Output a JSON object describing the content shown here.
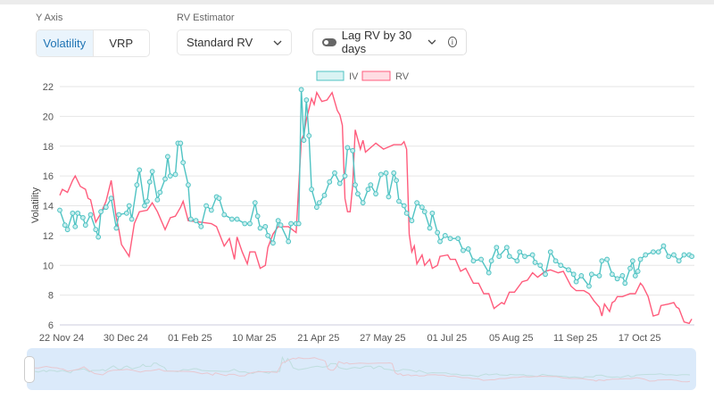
{
  "controls": {
    "y_axis_label": "Y Axis",
    "y_axis_options": [
      "Volatility",
      "VRP"
    ],
    "rv_estimator_label": "RV Estimator",
    "rv_estimator_value": "Standard RV",
    "lag_label": "Lag RV by 30 days",
    "lag_enabled": false
  },
  "colors": {
    "iv": "#4fc3c3",
    "rv": "#ff5c7c"
  },
  "chart_data": {
    "type": "line",
    "ylabel": "Volatility",
    "ylim": [
      6,
      22
    ],
    "yticks": [
      6,
      8,
      10,
      12,
      14,
      16,
      18,
      20,
      22
    ],
    "x_unit": "trading-day index",
    "xlim": [
      0,
      247
    ],
    "xticks": [
      {
        "i": 0,
        "label": "22 Nov 24"
      },
      {
        "i": 25,
        "label": "30 Dec 24"
      },
      {
        "i": 50,
        "label": "01 Feb 25"
      },
      {
        "i": 75,
        "label": "10 Mar 25"
      },
      {
        "i": 100,
        "label": "21 Apr 25"
      },
      {
        "i": 125,
        "label": "27 May 25"
      },
      {
        "i": 150,
        "label": "01 Jul 25"
      },
      {
        "i": 175,
        "label": "05 Aug 25"
      },
      {
        "i": 200,
        "label": "11 Sep 25"
      },
      {
        "i": 225,
        "label": "17 Oct 25"
      }
    ],
    "legend": [
      "IV",
      "RV"
    ],
    "legend_position": "top-center",
    "grid": true,
    "series": [
      {
        "name": "IV",
        "points": [
          [
            0,
            13.7
          ],
          [
            2,
            12.7
          ],
          [
            3,
            12.4
          ],
          [
            5,
            13.5
          ],
          [
            6,
            12.6
          ],
          [
            7,
            13.5
          ],
          [
            9,
            13.2
          ],
          [
            10,
            12.7
          ],
          [
            12,
            13.4
          ],
          [
            14,
            12.4
          ],
          [
            15,
            11.9
          ],
          [
            16,
            13.6
          ],
          [
            18,
            13.9
          ],
          [
            20,
            14.5
          ],
          [
            22,
            12.5
          ],
          [
            23,
            13.4
          ],
          [
            26,
            13.5
          ],
          [
            27,
            14
          ],
          [
            28,
            13.1
          ],
          [
            30,
            15.4
          ],
          [
            31,
            16.4
          ],
          [
            33,
            14
          ],
          [
            34,
            14.3
          ],
          [
            35,
            15.6
          ],
          [
            36,
            16.3
          ],
          [
            38,
            14.4
          ],
          [
            39,
            14.9
          ],
          [
            41,
            15.8
          ],
          [
            42,
            17.3
          ],
          [
            43,
            16
          ],
          [
            45,
            16.1
          ],
          [
            46,
            18.2
          ],
          [
            47,
            18.2
          ],
          [
            48,
            16.9
          ],
          [
            50,
            15.4
          ],
          [
            51,
            13.1
          ],
          [
            53,
            13
          ],
          [
            55,
            12.6
          ],
          [
            57,
            14
          ],
          [
            59,
            13.7
          ],
          [
            61,
            14.6
          ],
          [
            62,
            14.5
          ],
          [
            64,
            13.4
          ],
          [
            67,
            13.1
          ],
          [
            69,
            13.1
          ],
          [
            72,
            12.8
          ],
          [
            74,
            12.8
          ],
          [
            76,
            14.2
          ],
          [
            77,
            13.3
          ],
          [
            78,
            12.5
          ],
          [
            80,
            12.6
          ],
          [
            81,
            12
          ],
          [
            83,
            11.5
          ],
          [
            85,
            13
          ],
          [
            86,
            12.7
          ],
          [
            89,
            11.6
          ],
          [
            90,
            12.8
          ],
          [
            92,
            12.8
          ],
          [
            93,
            12.8
          ],
          [
            94,
            21.8
          ],
          [
            95,
            18.4
          ],
          [
            96,
            21.1
          ],
          [
            97,
            18.7
          ],
          [
            98,
            15.1
          ],
          [
            100,
            13.9
          ],
          [
            101,
            14.2
          ],
          [
            103,
            14.7
          ],
          [
            105,
            15.6
          ],
          [
            107,
            16.2
          ],
          [
            109,
            15.5
          ],
          [
            111,
            16
          ],
          [
            112,
            17.9
          ],
          [
            114,
            17.7
          ],
          [
            115,
            15.4
          ],
          [
            116,
            14.8
          ],
          [
            118,
            14.2
          ],
          [
            120,
            15.1
          ],
          [
            121,
            15.4
          ],
          [
            123,
            14.8
          ],
          [
            125,
            16.1
          ],
          [
            127,
            16.2
          ],
          [
            128,
            14.6
          ],
          [
            130,
            16.2
          ],
          [
            131,
            15.7
          ],
          [
            132,
            14.3
          ],
          [
            134,
            14
          ],
          [
            135,
            13.5
          ],
          [
            137,
            13
          ],
          [
            139,
            14.2
          ],
          [
            141,
            13.9
          ],
          [
            142,
            13.6
          ],
          [
            144,
            12.5
          ],
          [
            145,
            13.5
          ],
          [
            147,
            12.2
          ],
          [
            148,
            11.6
          ],
          [
            150,
            12
          ],
          [
            152,
            11.8
          ],
          [
            155,
            11.8
          ],
          [
            157,
            11
          ],
          [
            159,
            11.1
          ],
          [
            161,
            10.3
          ],
          [
            164,
            10.4
          ],
          [
            167,
            9.5
          ],
          [
            168,
            10.3
          ],
          [
            170,
            11.2
          ],
          [
            171,
            10.6
          ],
          [
            174,
            11.2
          ],
          [
            175,
            10.6
          ],
          [
            178,
            10.3
          ],
          [
            179,
            10.9
          ],
          [
            181,
            10.6
          ],
          [
            184,
            10.7
          ],
          [
            185,
            10.2
          ],
          [
            187,
            10
          ],
          [
            189,
            9.4
          ],
          [
            191,
            10.9
          ],
          [
            193,
            10.3
          ],
          [
            195,
            10
          ],
          [
            198,
            9.7
          ],
          [
            200,
            9.4
          ],
          [
            201,
            8.9
          ],
          [
            203,
            9.3
          ],
          [
            206,
            8.6
          ],
          [
            207,
            9.4
          ],
          [
            210,
            9.3
          ],
          [
            211,
            10.3
          ],
          [
            213,
            10.4
          ],
          [
            215,
            9.4
          ],
          [
            217,
            9.1
          ],
          [
            219,
            9.3
          ],
          [
            220,
            8.8
          ],
          [
            222,
            9.8
          ],
          [
            223,
            10.3
          ],
          [
            224,
            9.3
          ],
          [
            225,
            9.6
          ],
          [
            226,
            10.4
          ],
          [
            228,
            10.7
          ],
          [
            231,
            10.9
          ],
          [
            233,
            10.9
          ],
          [
            235,
            11.3
          ],
          [
            237,
            10.6
          ],
          [
            239,
            10.7
          ],
          [
            241,
            10.3
          ],
          [
            243,
            10.7
          ],
          [
            245,
            10.7
          ],
          [
            246,
            10.6
          ]
        ]
      },
      {
        "name": "RV",
        "points": [
          [
            0,
            14.7
          ],
          [
            1,
            15.1
          ],
          [
            3,
            14.9
          ],
          [
            5,
            15.7
          ],
          [
            6,
            16
          ],
          [
            8,
            15.3
          ],
          [
            10,
            15.1
          ],
          [
            11,
            14.5
          ],
          [
            12,
            14.4
          ],
          [
            14,
            12.9
          ],
          [
            16,
            13.5
          ],
          [
            18,
            14.3
          ],
          [
            20,
            15.7
          ],
          [
            22,
            13.2
          ],
          [
            23,
            12.4
          ],
          [
            24,
            11.4
          ],
          [
            27,
            10.6
          ],
          [
            29,
            12.8
          ],
          [
            31,
            13.6
          ],
          [
            34,
            13.7
          ],
          [
            36,
            14.2
          ],
          [
            38,
            13.6
          ],
          [
            41,
            12.4
          ],
          [
            43,
            13.2
          ],
          [
            45,
            13.3
          ],
          [
            47,
            13.9
          ],
          [
            48,
            14.3
          ],
          [
            50,
            13
          ],
          [
            55,
            12.9
          ],
          [
            59,
            12.8
          ],
          [
            61,
            12.6
          ],
          [
            64,
            11.3
          ],
          [
            66,
            11.8
          ],
          [
            68,
            10.4
          ],
          [
            69,
            11.9
          ],
          [
            71,
            10.9
          ],
          [
            73,
            10.1
          ],
          [
            74,
            10.9
          ],
          [
            76,
            10.9
          ],
          [
            78,
            9.8
          ],
          [
            80,
            10
          ],
          [
            81,
            11.2
          ],
          [
            83,
            12.1
          ],
          [
            85,
            12.6
          ],
          [
            89,
            12.6
          ],
          [
            92,
            12.2
          ],
          [
            94,
            18.4
          ],
          [
            95,
            18.8
          ],
          [
            96,
            19.8
          ],
          [
            98,
            21.2
          ],
          [
            99,
            20.8
          ],
          [
            100,
            21.6
          ],
          [
            102,
            21
          ],
          [
            104,
            21.1
          ],
          [
            106,
            21.6
          ],
          [
            108,
            20.4
          ],
          [
            109,
            20.1
          ],
          [
            110,
            19.4
          ],
          [
            111,
            14.5
          ],
          [
            112,
            13.6
          ],
          [
            113,
            13.6
          ],
          [
            114,
            15.4
          ],
          [
            115,
            19.1
          ],
          [
            117,
            17.8
          ],
          [
            118,
            18.4
          ],
          [
            119,
            17.6
          ],
          [
            123,
            18.2
          ],
          [
            126,
            17.8
          ],
          [
            130,
            18.1
          ],
          [
            133,
            18.1
          ],
          [
            134,
            18.3
          ],
          [
            135,
            17.8
          ],
          [
            136,
            12.1
          ],
          [
            137,
            10.9
          ],
          [
            138,
            11.3
          ],
          [
            139,
            10.1
          ],
          [
            141,
            10.7
          ],
          [
            142,
            10
          ],
          [
            144,
            10.4
          ],
          [
            145,
            9.8
          ],
          [
            147,
            10
          ],
          [
            148,
            10.6
          ],
          [
            151,
            10.7
          ],
          [
            152,
            10.4
          ],
          [
            154,
            10.4
          ],
          [
            156,
            9.6
          ],
          [
            158,
            9.8
          ],
          [
            161,
            8.8
          ],
          [
            163,
            8.8
          ],
          [
            165,
            8.1
          ],
          [
            167,
            8.1
          ],
          [
            169,
            7.1
          ],
          [
            172,
            7.5
          ],
          [
            173,
            7.4
          ],
          [
            175,
            8.2
          ],
          [
            177,
            8.2
          ],
          [
            180,
            8.9
          ],
          [
            182,
            9
          ],
          [
            184,
            9.5
          ],
          [
            186,
            9.2
          ],
          [
            189,
            9.6
          ],
          [
            191,
            9.7
          ],
          [
            194,
            9.5
          ],
          [
            196,
            9.6
          ],
          [
            199,
            8.6
          ],
          [
            201,
            8.3
          ],
          [
            204,
            8.3
          ],
          [
            206,
            8.1
          ],
          [
            208,
            7.6
          ],
          [
            210,
            7.2
          ],
          [
            211,
            6.6
          ],
          [
            212,
            7.4
          ],
          [
            214,
            6.9
          ],
          [
            215,
            7.5
          ],
          [
            216,
            7.6
          ],
          [
            217,
            7.9
          ],
          [
            219,
            7.9
          ],
          [
            222,
            8.1
          ],
          [
            224,
            8.1
          ],
          [
            226,
            8.8
          ],
          [
            227,
            8.6
          ],
          [
            229,
            7.9
          ],
          [
            231,
            6.6
          ],
          [
            233,
            6.7
          ],
          [
            234,
            7.3
          ],
          [
            237,
            7.4
          ],
          [
            239,
            7.5
          ],
          [
            240,
            7.2
          ],
          [
            241,
            7.1
          ],
          [
            243,
            6.2
          ],
          [
            245,
            6.1
          ],
          [
            246,
            6.4
          ]
        ]
      }
    ]
  }
}
